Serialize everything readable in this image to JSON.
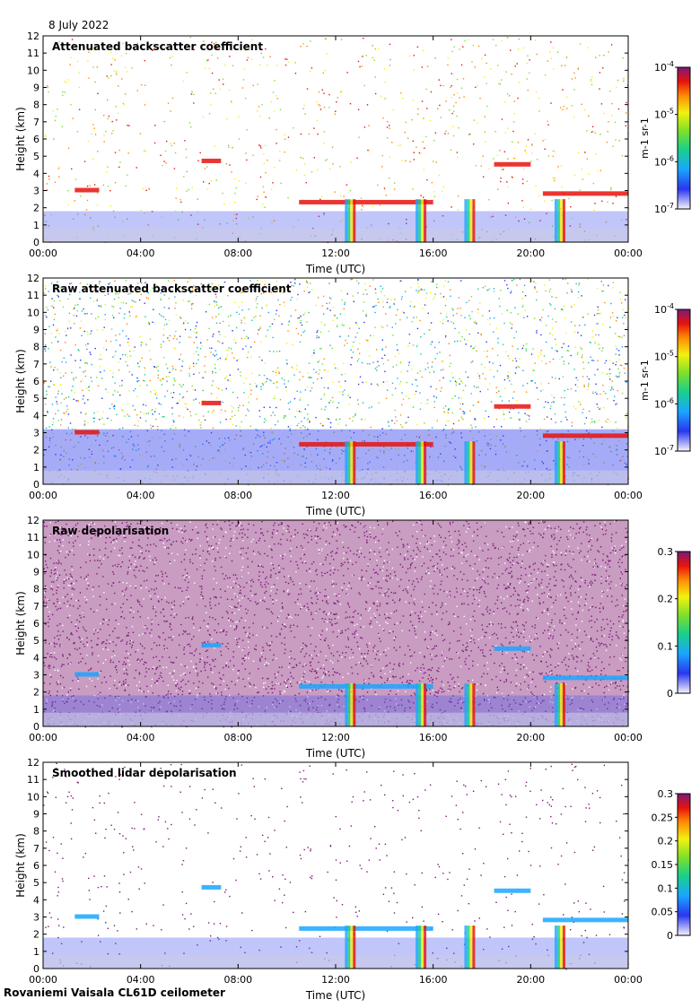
{
  "date": "8 July 2022",
  "footer": "Rovaniemi Vaisala CL61D ceilometer",
  "chart_data": [
    {
      "type": "heatmap",
      "title": "Attenuated backscatter coefficient",
      "xlabel": "Time (UTC)",
      "ylabel": "Height (km)",
      "x_ticks": [
        "00:00",
        "04:00",
        "08:00",
        "12:00",
        "16:00",
        "20:00",
        "00:00"
      ],
      "ylim": [
        0,
        12
      ],
      "y_ticks": [
        "0",
        "1",
        "2",
        "3",
        "4",
        "5",
        "6",
        "7",
        "8",
        "9",
        "10",
        "11",
        "12"
      ],
      "colorbar": {
        "scale": "log",
        "ticks": [
          "10-7",
          "10-6",
          "10-5",
          "10-4"
        ],
        "unit": "m-1 sr-1"
      },
      "cloud_layers": [
        {
          "t_start": 1.3,
          "t_end": 2.3,
          "height": 3.0
        },
        {
          "t_start": 6.5,
          "t_end": 7.3,
          "height": 4.7
        },
        {
          "t_start": 10.5,
          "t_end": 16.0,
          "height": 2.3
        },
        {
          "t_start": 18.5,
          "t_end": 20.0,
          "height": 4.5
        },
        {
          "t_start": 20.5,
          "t_end": 24.0,
          "height": 2.8
        }
      ]
    },
    {
      "type": "heatmap",
      "title": "Raw attenuated backscatter coefficient",
      "xlabel": "Time (UTC)",
      "ylabel": "Height (km)",
      "x_ticks": [
        "00:00",
        "04:00",
        "08:00",
        "12:00",
        "16:00",
        "20:00",
        "00:00"
      ],
      "ylim": [
        0,
        12
      ],
      "y_ticks": [
        "0",
        "1",
        "2",
        "3",
        "4",
        "5",
        "6",
        "7",
        "8",
        "9",
        "10",
        "11",
        "12"
      ],
      "colorbar": {
        "scale": "log",
        "ticks": [
          "10-7",
          "10-6",
          "10-5",
          "10-4"
        ],
        "unit": "m-1 sr-1"
      }
    },
    {
      "type": "heatmap",
      "title": "Raw depolarisation",
      "xlabel": "Time (UTC)",
      "ylabel": "Height (km)",
      "x_ticks": [
        "00:00",
        "04:00",
        "08:00",
        "12:00",
        "16:00",
        "20:00",
        "00:00"
      ],
      "ylim": [
        0,
        12
      ],
      "y_ticks": [
        "0",
        "1",
        "2",
        "3",
        "4",
        "5",
        "6",
        "7",
        "8",
        "9",
        "10",
        "11",
        "12"
      ],
      "colorbar": {
        "scale": "linear",
        "range": [
          0,
          0.3
        ],
        "ticks": [
          "0",
          "0.1",
          "0.2",
          "0.3"
        ],
        "unit": ""
      }
    },
    {
      "type": "heatmap",
      "title": "Smoothed lidar depolarisation",
      "xlabel": "Time (UTC)",
      "ylabel": "Height (km)",
      "x_ticks": [
        "00:00",
        "04:00",
        "08:00",
        "12:00",
        "16:00",
        "20:00",
        "00:00"
      ],
      "ylim": [
        0,
        12
      ],
      "y_ticks": [
        "0",
        "1",
        "2",
        "3",
        "4",
        "5",
        "6",
        "7",
        "8",
        "9",
        "10",
        "11",
        "12"
      ],
      "colorbar": {
        "scale": "linear",
        "range": [
          0,
          0.3
        ],
        "ticks": [
          "0",
          "0.05",
          "0.1",
          "0.15",
          "0.2",
          "0.25",
          "0.3"
        ],
        "unit": ""
      }
    }
  ]
}
